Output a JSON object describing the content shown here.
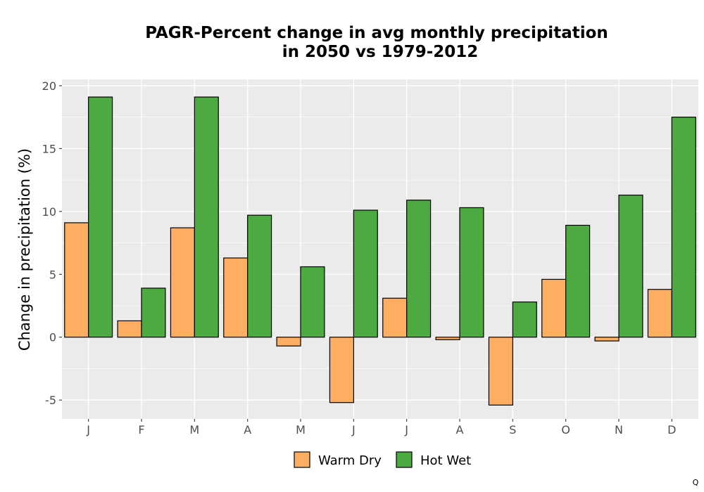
{
  "chart_data": {
    "type": "bar",
    "title": "PAGR-Percent change in avg monthly precipitation",
    "subtitle": "in 2050 vs 1979-2012",
    "xlabel": "",
    "ylabel": "Change in precipitation (%)",
    "categories": [
      "J",
      "F",
      "M",
      "A",
      "M",
      "J",
      "J",
      "A",
      "S",
      "O",
      "N",
      "D"
    ],
    "ylim": [
      -6.5,
      20.5
    ],
    "yticks": [
      20,
      15,
      10,
      5,
      0,
      -5
    ],
    "ytick_labels": [
      "20",
      "15",
      "10",
      "5",
      "0",
      "-5"
    ],
    "grid": true,
    "legend_position": "bottom",
    "series": [
      {
        "name": "Warm Dry",
        "color": "#fdae61",
        "values": [
          9.1,
          1.3,
          8.7,
          6.3,
          -0.7,
          -5.2,
          3.1,
          -0.2,
          -5.4,
          4.6,
          -0.3,
          3.8
        ]
      },
      {
        "name": "Hot Wet",
        "color": "#4daa41",
        "values": [
          19.1,
          3.9,
          19.1,
          9.7,
          5.6,
          10.1,
          10.9,
          10.3,
          2.8,
          8.9,
          11.3,
          17.5
        ]
      }
    ],
    "panel_background": "#ebebeb",
    "grid_color": "#ffffff",
    "corner_mark": "Q"
  }
}
